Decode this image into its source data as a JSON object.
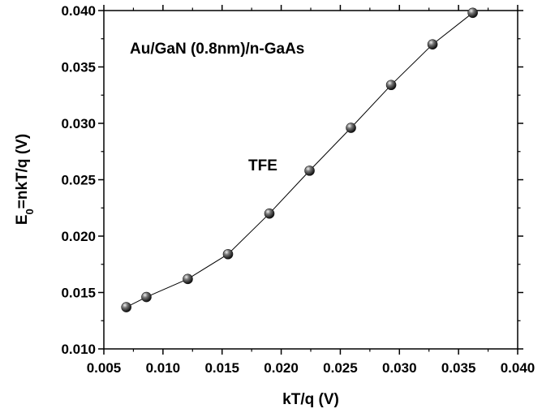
{
  "chart_data": {
    "type": "scatter",
    "xlabel": "kT/q (V)",
    "ylabel_main": "E",
    "ylabel_sub": "0",
    "ylabel_rest": "=nkT/q (V)",
    "xlim": [
      0.005,
      0.04
    ],
    "ylim": [
      0.01,
      0.04
    ],
    "xticks": [
      "0.005",
      "0.010",
      "0.015",
      "0.020",
      "0.025",
      "0.030",
      "0.035",
      "0.040"
    ],
    "yticks": [
      "0.010",
      "0.015",
      "0.020",
      "0.025",
      "0.030",
      "0.035",
      "0.040"
    ],
    "annotations": {
      "sample": "Au/GaN (0.8nm)/n-GaAs",
      "mechanism": "TFE"
    },
    "series": [
      {
        "x": [
          0.0069,
          0.0086,
          0.0121,
          0.0155,
          0.019,
          0.0224,
          0.0259,
          0.0293,
          0.0328,
          0.0362
        ],
        "y": [
          0.0137,
          0.0146,
          0.0162,
          0.0184,
          0.022,
          0.0258,
          0.0296,
          0.0334,
          0.037,
          0.0398
        ]
      }
    ],
    "colors": {
      "marker": "#1a1a1a",
      "line": "#000000"
    }
  }
}
